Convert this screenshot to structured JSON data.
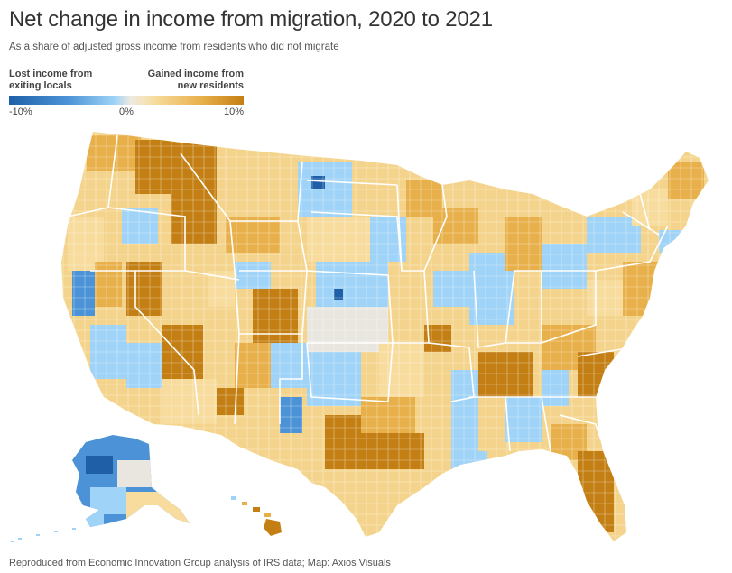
{
  "title": "Net change in income from migration, 2020 to 2021",
  "subtitle": "As a share of adjusted gross income from residents who did not migrate",
  "legend": {
    "left_label": "Lost income from\nexiting locals",
    "right_label": "Gained income from\nnew residents",
    "ticks": [
      "-10%",
      "0%",
      "10%"
    ],
    "colors": [
      "#1f5fa8",
      "#4b93d6",
      "#9fd3f7",
      "#e8e6df",
      "#f7dc9e",
      "#e8b04a",
      "#c47f14"
    ]
  },
  "map": {
    "region": "United States counties",
    "palette": {
      "dark_blue": "#1f5fa8",
      "blue": "#4b93d6",
      "light_blue": "#9fd3f7",
      "neutral": "#e8e6df",
      "light_yellow": "#f7dc9e",
      "orange": "#e8b04a",
      "dark_orange": "#c47f14",
      "state_border": "#ffffff"
    }
  },
  "source": "Reproduced from Economic Innovation Group analysis of IRS data; Map: Axios Visuals"
}
